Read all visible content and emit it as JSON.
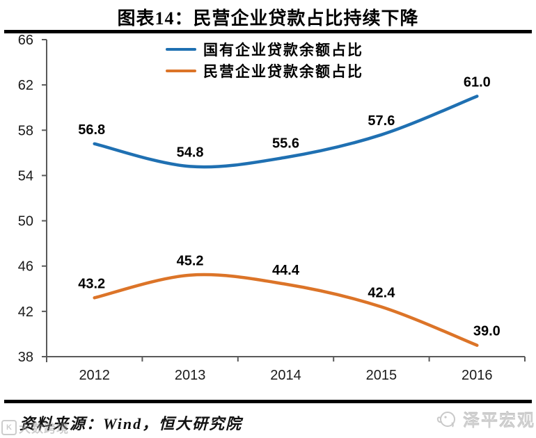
{
  "title": "图表14：民营企业贷款占比持续下降",
  "chart_data": {
    "type": "line",
    "categories": [
      "2012",
      "2013",
      "2014",
      "2015",
      "2016"
    ],
    "series": [
      {
        "name": "国有企业贷款余额占比",
        "color": "#1F70B2",
        "values": [
          56.8,
          54.8,
          55.6,
          57.6,
          61.0
        ]
      },
      {
        "name": "民营企业贷款余额占比",
        "color": "#DC7428",
        "values": [
          43.2,
          45.2,
          44.4,
          42.4,
          39.0
        ]
      }
    ],
    "ylim": [
      38,
      66
    ],
    "ytick_step": 4,
    "yticks": [
      38,
      42,
      46,
      50,
      54,
      58,
      62,
      66
    ],
    "grid": false,
    "legend_position": "top-center",
    "axis_color": "#595959",
    "tick_label_color": "#1a1a1a",
    "data_label_color": "#000000",
    "xlabel": "",
    "ylabel": ""
  },
  "footer": {
    "source_label": "资料来源：Wind，恒大研究院",
    "brand_name": "泽平宏观",
    "watermark_text": "大数跨境",
    "watermark_badge": "K"
  }
}
